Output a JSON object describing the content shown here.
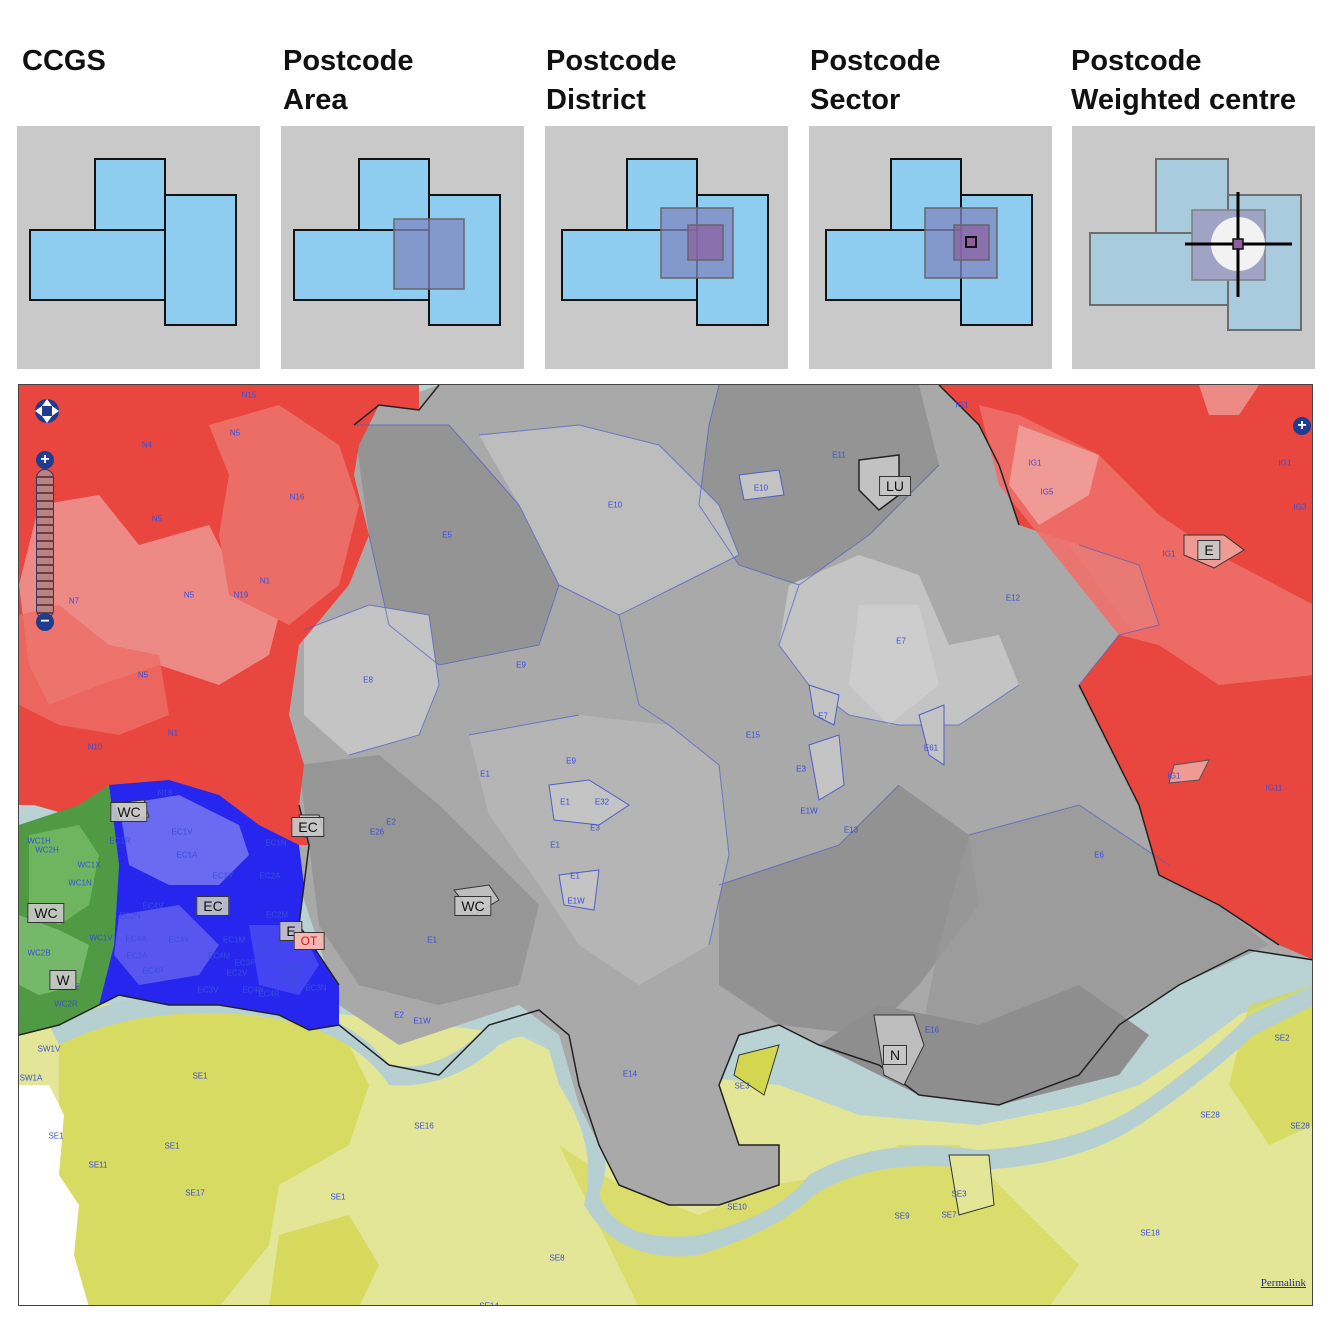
{
  "panels": [
    {
      "title": "CCGS",
      "stage": "ccgs"
    },
    {
      "title": "Postcode\nArea",
      "stage": "area"
    },
    {
      "title": "Postcode\nDistrict",
      "stage": "district"
    },
    {
      "title": "Postcode\nSector",
      "stage": "sector"
    },
    {
      "title": "Postcode\nWeighted centre",
      "stage": "centre"
    }
  ],
  "colors": {
    "ccg_fill": "#8fcdf0",
    "overlay_fill": "#7f86c0",
    "panel_bg": "#c9c9c9",
    "red": "#e8463e",
    "pink": "#ee8a86",
    "grey_dark": "#8e8e8e",
    "grey_mid": "#a9a9a9",
    "grey_light": "#c4c4c4",
    "blue": "#2626ef",
    "green": "#4f9a42",
    "yellow": "#d6dd5c",
    "yellow_light": "#e3e696",
    "river": "#b9d2d3"
  },
  "map": {
    "controls": {
      "zoom_in": "+",
      "zoom_out": "−",
      "layer_switcher": "+",
      "permalink": "Permalink"
    },
    "boundary_labels": [
      "LU",
      "E",
      "EC",
      "WC",
      "WC",
      "WC",
      "EC",
      "E",
      "OT",
      "N",
      "W"
    ],
    "district_labels": [
      "N15",
      "N5",
      "N4",
      "N16",
      "N5",
      "N1",
      "N7",
      "N5",
      "N19",
      "N5",
      "N1",
      "N10",
      "N18",
      "E10",
      "E11",
      "E10",
      "E5",
      "E9",
      "E8",
      "E1",
      "E9",
      "E1",
      "E32",
      "E3",
      "E1",
      "E1",
      "E1W",
      "E26",
      "E2",
      "E1",
      "E15",
      "E7",
      "E3",
      "E1W",
      "E13",
      "E7",
      "E12",
      "E6",
      "E61",
      "E16",
      "E14",
      "E2",
      "E1W",
      "IG1",
      "IG1",
      "IG5",
      "IG1",
      "IG3",
      "IG1",
      "IG1",
      "IG11",
      "SE1",
      "SE1",
      "SE11",
      "SE17",
      "SE1",
      "SE1",
      "SE16",
      "SE8",
      "SE3",
      "SE10",
      "SE9",
      "SE7",
      "SE3",
      "SE18",
      "SE2",
      "SE28",
      "SE28",
      "SE14",
      "SW1V",
      "SW1A",
      "WC1H",
      "WC2H",
      "WC1X",
      "WC1N",
      "WC2B",
      "WC1V",
      "WC2R",
      "WC2E",
      "EC1R",
      "EC1V",
      "EC1A",
      "EC1Y",
      "EC2A",
      "EC2M",
      "EC1M",
      "EC3A",
      "EC4A",
      "EC4Y",
      "EC4M",
      "EC2V",
      "EC3V",
      "EC4N",
      "EC4R",
      "EC3R",
      "EC3N",
      "EC3M",
      "EC2R",
      "EC1N",
      "EC2N",
      "EC4V",
      "EC3P",
      "EC4P"
    ]
  }
}
